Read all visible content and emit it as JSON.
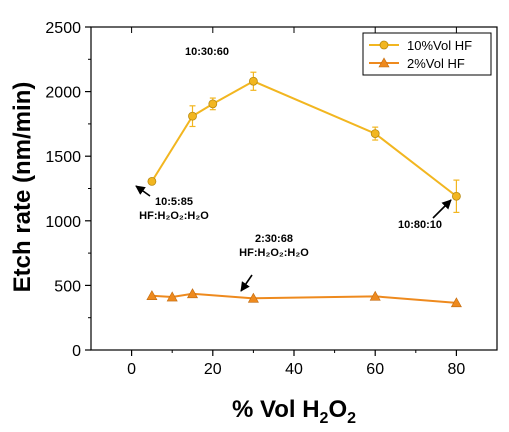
{
  "chart_data": {
    "type": "line",
    "title": "",
    "xlabel": "% Vol H",
    "xlabel_sub": "2",
    "xlabel_tail": "O",
    "xlabel_sub2": "2",
    "ylabel": "Etch rate (nm/min)",
    "xlim": [
      -10,
      90
    ],
    "ylim": [
      0,
      2500
    ],
    "x_ticks": [
      0,
      20,
      40,
      60,
      80
    ],
    "y_ticks": [
      0,
      500,
      1000,
      1500,
      2000,
      2500
    ],
    "legend_position": "top-right",
    "series": [
      {
        "name": "10%Vol HF",
        "color": "#F2B620",
        "marker": "circle",
        "points": [
          {
            "x": 5,
            "y": 1305,
            "err": 20
          },
          {
            "x": 15,
            "y": 1810,
            "err": 80
          },
          {
            "x": 20,
            "y": 1905,
            "err": 45
          },
          {
            "x": 30,
            "y": 2080,
            "err": 70
          },
          {
            "x": 60,
            "y": 1675,
            "err": 50
          },
          {
            "x": 80,
            "y": 1190,
            "err": 125
          }
        ]
      },
      {
        "name": "2%Vol HF",
        "color": "#EE8A1E",
        "marker": "triangle",
        "points": [
          {
            "x": 5,
            "y": 420,
            "err": 0
          },
          {
            "x": 10,
            "y": 410,
            "err": 0
          },
          {
            "x": 15,
            "y": 435,
            "err": 0
          },
          {
            "x": 30,
            "y": 400,
            "err": 0
          },
          {
            "x": 60,
            "y": 415,
            "err": 0
          },
          {
            "x": 80,
            "y": 365,
            "err": 0
          }
        ]
      }
    ],
    "annotations": [
      {
        "lines": [
          "10:30:60"
        ],
        "target": {
          "x": 30,
          "y": 2080
        },
        "arrow": false
      },
      {
        "lines": [
          "10:5:85",
          "HF:H₂O₂:H₂O"
        ],
        "target": {
          "x": 5,
          "y": 1305
        },
        "arrow": true
      },
      {
        "lines": [
          "10:80:10"
        ],
        "target": {
          "x": 80,
          "y": 1190
        },
        "arrow": true
      },
      {
        "lines": [
          "2:30:68",
          "HF:H₂O₂:H₂O"
        ],
        "target": {
          "x": 30,
          "y": 400
        },
        "arrow": true
      }
    ]
  }
}
